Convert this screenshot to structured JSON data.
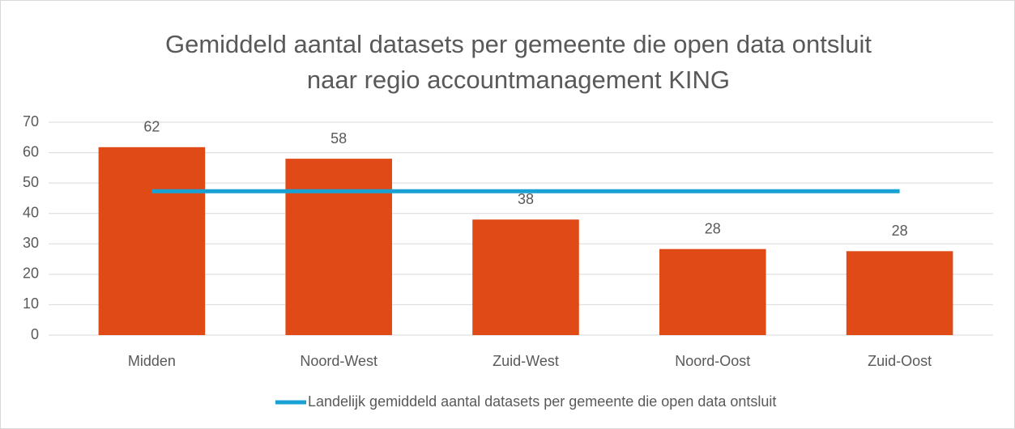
{
  "chart_data": {
    "type": "bar",
    "title": [
      "Gemiddeld aantal datasets per gemeente die open data ontsluit",
      "naar regio accountmanagement KING"
    ],
    "categories": [
      "Midden",
      "Noord-West",
      "Zuid-West",
      "Noord-Oost",
      "Zuid-Oost"
    ],
    "series": [
      {
        "type": "bar",
        "color": "#e04a16",
        "values": [
          61.8,
          58,
          38,
          28.3,
          27.6
        ],
        "value_labels": [
          "62",
          "58",
          "38",
          "28",
          "28"
        ]
      },
      {
        "type": "line",
        "name": "Landelijk gemiddeld aantal datasets per gemeente die open data ontsluit",
        "color": "#1aa1d4",
        "values": [
          47.3,
          47.3,
          47.3,
          47.3,
          47.3
        ]
      }
    ],
    "ylim": [
      0,
      70
    ],
    "yticks": [
      0,
      10,
      20,
      30,
      40,
      50,
      60,
      70
    ],
    "grid": true,
    "legend": "bottom"
  }
}
